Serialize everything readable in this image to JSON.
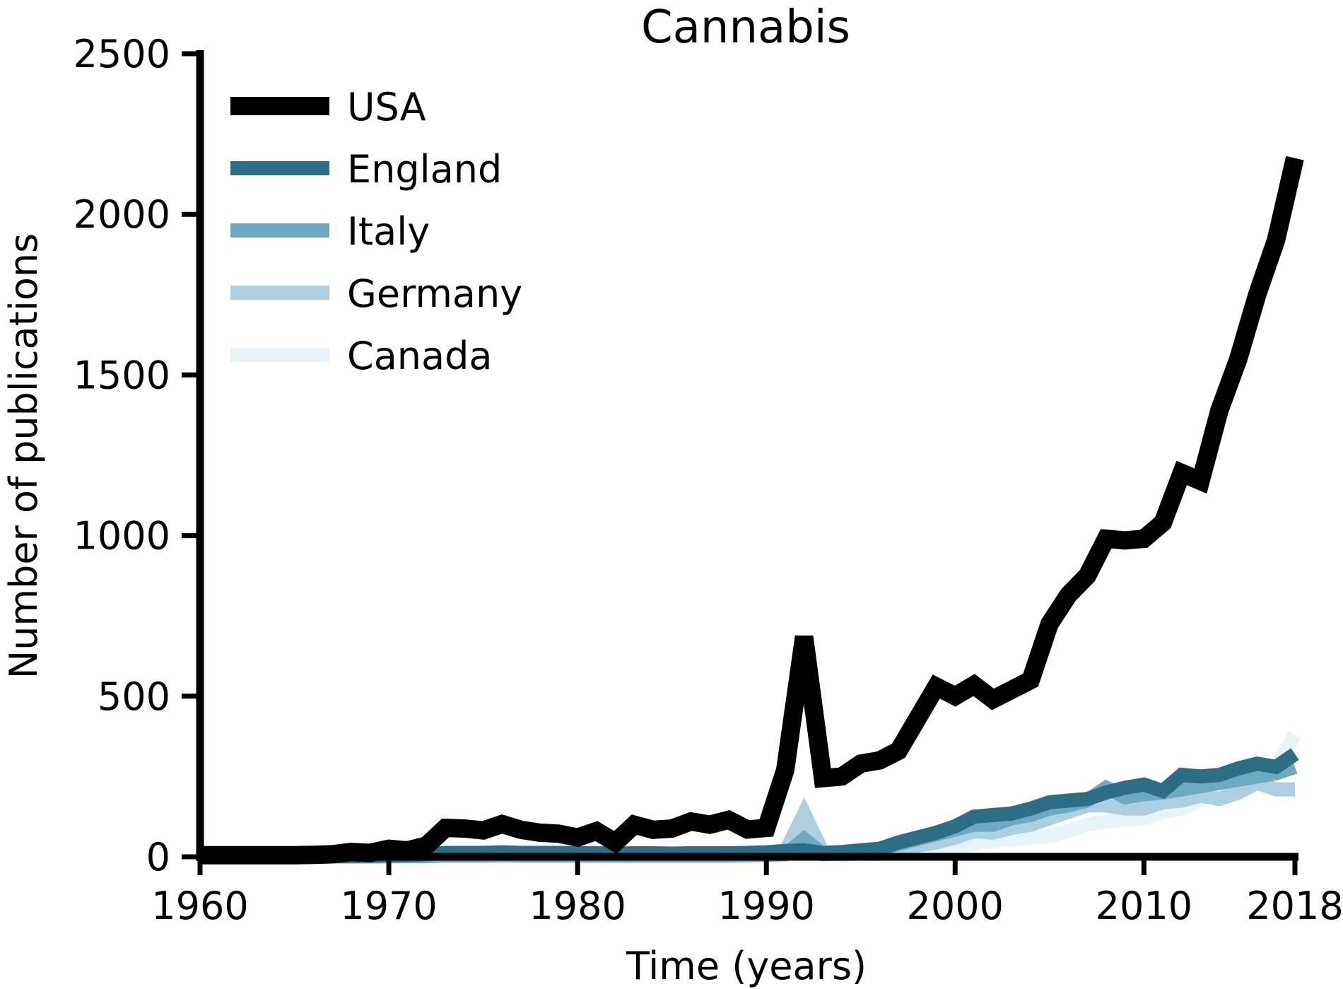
{
  "chart_data": {
    "type": "line",
    "title": "Cannabis",
    "xlabel": "Time (years)",
    "ylabel": "Number of publications",
    "xlim": [
      1960,
      2018
    ],
    "ylim": [
      0,
      2500
    ],
    "xticks": [
      1960,
      1970,
      1980,
      1990,
      2000,
      2010,
      2018
    ],
    "yticks": [
      0,
      500,
      1000,
      1500,
      2000,
      2500
    ],
    "grid": false,
    "legend_position": "top-left",
    "x": [
      1960,
      1961,
      1962,
      1963,
      1964,
      1965,
      1966,
      1967,
      1968,
      1969,
      1970,
      1971,
      1972,
      1973,
      1974,
      1975,
      1976,
      1977,
      1978,
      1979,
      1980,
      1981,
      1982,
      1983,
      1984,
      1985,
      1986,
      1987,
      1988,
      1989,
      1990,
      1991,
      1992,
      1993,
      1994,
      1995,
      1996,
      1997,
      1998,
      1999,
      2000,
      2001,
      2002,
      2003,
      2004,
      2005,
      2006,
      2007,
      2008,
      2009,
      2010,
      2011,
      2012,
      2013,
      2014,
      2015,
      2016,
      2017,
      2018
    ],
    "series": [
      {
        "name": "Canada",
        "color": "#e8f3f7",
        "width": 20,
        "values": [
          0,
          0,
          0,
          0,
          0,
          0,
          0,
          1,
          1,
          2,
          3,
          3,
          4,
          8,
          8,
          8,
          9,
          8,
          8,
          8,
          7,
          7,
          6,
          7,
          7,
          6,
          7,
          7,
          7,
          8,
          10,
          20,
          110,
          10,
          5,
          6,
          8,
          12,
          15,
          20,
          30,
          40,
          50,
          55,
          60,
          65,
          80,
          100,
          110,
          115,
          120,
          140,
          150,
          180,
          210,
          240,
          260,
          280,
          380
        ]
      },
      {
        "name": "Germany",
        "color": "#aecfdf",
        "width": 20,
        "values": [
          0,
          0,
          0,
          0,
          0,
          0,
          0,
          1,
          1,
          1,
          2,
          2,
          3,
          6,
          6,
          6,
          7,
          6,
          6,
          6,
          5,
          5,
          5,
          6,
          6,
          5,
          6,
          6,
          6,
          7,
          8,
          15,
          135,
          12,
          8,
          10,
          15,
          25,
          35,
          45,
          60,
          80,
          75,
          90,
          100,
          120,
          140,
          160,
          160,
          150,
          150,
          170,
          175,
          190,
          180,
          200,
          230,
          210,
          210
        ]
      },
      {
        "name": "Italy",
        "color": "#6ea8c1",
        "width": 20,
        "values": [
          0,
          0,
          0,
          0,
          0,
          0,
          0,
          1,
          1,
          1,
          2,
          2,
          2,
          4,
          4,
          4,
          5,
          4,
          4,
          4,
          4,
          4,
          4,
          4,
          4,
          4,
          4,
          4,
          4,
          5,
          6,
          8,
          55,
          8,
          10,
          15,
          25,
          40,
          55,
          70,
          85,
          100,
          100,
          120,
          130,
          150,
          160,
          175,
          215,
          185,
          195,
          200,
          210,
          220,
          230,
          240,
          250,
          260,
          280
        ]
      },
      {
        "name": "England",
        "color": "#2c6e85",
        "width": 20,
        "values": [
          0,
          0,
          0,
          0,
          0,
          0,
          1,
          2,
          3,
          4,
          5,
          6,
          8,
          12,
          12,
          12,
          14,
          12,
          12,
          12,
          11,
          11,
          10,
          11,
          11,
          10,
          11,
          11,
          11,
          12,
          14,
          18,
          20,
          12,
          15,
          20,
          25,
          45,
          60,
          75,
          95,
          125,
          130,
          135,
          150,
          170,
          175,
          180,
          200,
          215,
          225,
          205,
          255,
          250,
          255,
          275,
          290,
          280,
          320
        ]
      },
      {
        "name": "USA",
        "color": "#000000",
        "width": 26,
        "values": [
          5,
          5,
          5,
          5,
          5,
          5,
          6,
          8,
          15,
          12,
          25,
          20,
          35,
          90,
          88,
          82,
          102,
          84,
          75,
          72,
          60,
          80,
          45,
          100,
          84,
          88,
          110,
          100,
          115,
          85,
          90,
          270,
          685,
          245,
          250,
          290,
          300,
          330,
          430,
          530,
          500,
          535,
          490,
          520,
          550,
          725,
          815,
          875,
          990,
          985,
          990,
          1040,
          1195,
          1170,
          1390,
          1550,
          1750,
          1920,
          2175
        ]
      }
    ],
    "legend": [
      "USA",
      "England",
      "Italy",
      "Germany",
      "Canada"
    ]
  }
}
